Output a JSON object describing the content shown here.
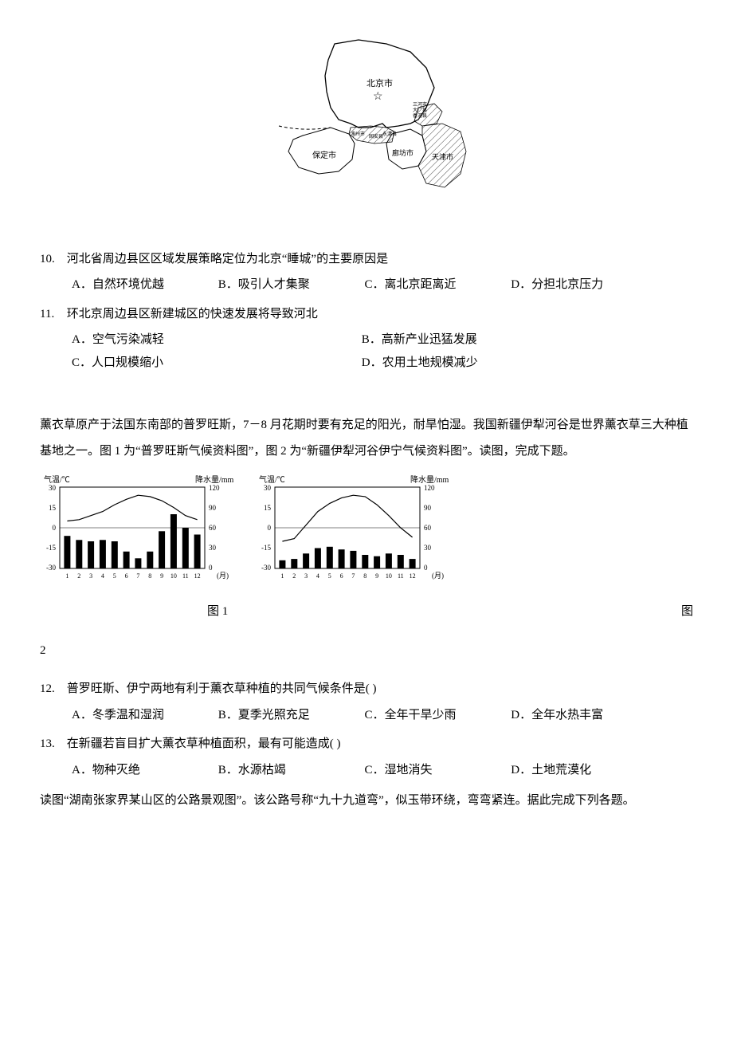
{
  "map": {
    "labels": {
      "beijing": "北京市",
      "baoding": "保定市",
      "langfang": "廊坊市",
      "sanhe": "三河市",
      "daguang": "大厂县",
      "xianghe": "香河县",
      "zhuozhou": "涿州市",
      "guan": "固安县",
      "yongqing": "永清县",
      "tianjin": "天津市"
    },
    "stroke_color": "#000000",
    "hatch_color": "#444444"
  },
  "q10": {
    "number": "10.",
    "text": "河北省周边县区区域发展策略定位为北京“睡城”的主要原因是",
    "options": {
      "A": "A．自然环境优越",
      "B": "B．吸引人才集聚",
      "C": "C．离北京距离近",
      "D": "D．分担北京压力"
    }
  },
  "q11": {
    "number": "11.",
    "text": "环北京周边县区新建城区的快速发展将导致河北",
    "options": {
      "A": "A．空气污染减轻",
      "B": "B．高新产业迅猛发展",
      "C": "C．人口规模缩小",
      "D": "D．农用土地规模减少"
    }
  },
  "passage1": "薰衣草原产于法国东南部的普罗旺斯，7－8 月花期时要有充足的阳光，耐旱怕湿。我国新疆伊犁河谷是世界薰衣草三大种植基地之一。图 1 为“普罗旺斯气候资料图”，图 2 为“新疆伊犁河谷伊宁气候资料图”。读图，完成下题。",
  "climate": {
    "axis_labels": {
      "temp": "气温/℃",
      "temp_ticks": [
        "30",
        "15",
        "0",
        "-15",
        "-30"
      ],
      "precip": "降水量/mm",
      "precip_ticks": [
        "120",
        "90",
        "60",
        "30",
        "0"
      ],
      "months": "(月)",
      "month_ticks": [
        "1",
        "2",
        "3",
        "4",
        "5",
        "6",
        "7",
        "8",
        "9",
        "10",
        "11",
        "12"
      ]
    },
    "chart1": {
      "temp_values": [
        5,
        6,
        9,
        12,
        17,
        21,
        24,
        23,
        20,
        15,
        9,
        6
      ],
      "precip_values": [
        48,
        42,
        40,
        42,
        40,
        25,
        15,
        25,
        55,
        80,
        60,
        50
      ],
      "temp_range": [
        -30,
        30
      ],
      "precip_range": [
        0,
        120
      ],
      "bar_color": "#000000",
      "line_color": "#000000",
      "background": "#ffffff"
    },
    "chart2": {
      "temp_values": [
        -10,
        -8,
        2,
        12,
        18,
        22,
        24,
        23,
        17,
        9,
        0,
        -7
      ],
      "precip_values": [
        12,
        14,
        22,
        30,
        32,
        28,
        26,
        20,
        18,
        22,
        20,
        14
      ],
      "temp_range": [
        -30,
        30
      ],
      "precip_range": [
        0,
        120
      ],
      "bar_color": "#000000",
      "line_color": "#000000",
      "background": "#ffffff"
    },
    "fig1_label": "图 1",
    "fig2_label_a": "图",
    "fig2_label_b": "2"
  },
  "q12": {
    "number": "12.",
    "text": "普罗旺斯、伊宁两地有利于薰衣草种植的共同气候条件是( )",
    "options": {
      "A": "A．冬季温和湿润",
      "B": "B．夏季光照充足",
      "C": "C．全年干旱少雨",
      "D": "D．全年水热丰富"
    }
  },
  "q13": {
    "number": "13.",
    "text": "在新疆若盲目扩大薰衣草种植面积，最有可能造成( )",
    "options": {
      "A": "A．物种灭绝",
      "B": "B．水源枯竭",
      "C": "C．湿地消失",
      "D": "D．土地荒漠化"
    }
  },
  "passage2": "读图“湖南张家界某山区的公路景观图”。该公路号称“九十九道弯”，似玉带环绕，弯弯紧连。据此完成下列各题。"
}
